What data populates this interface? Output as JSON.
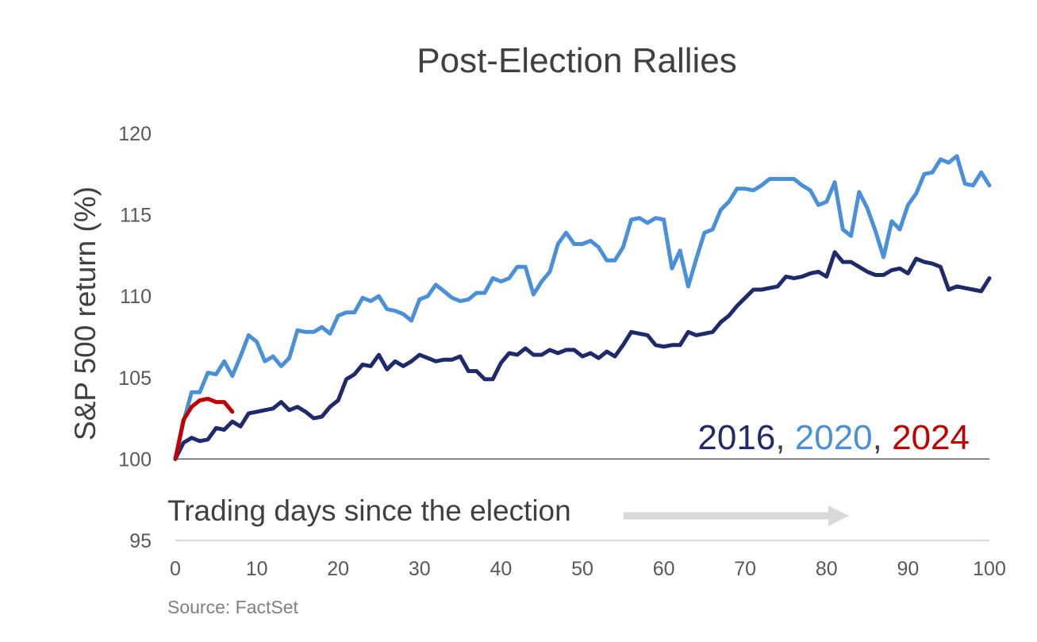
{
  "chart_data": {
    "type": "line",
    "title": "Post-Election Rallies",
    "ylabel": "S&P 500 return (%)",
    "xlabel": "",
    "xlim": [
      0,
      100
    ],
    "ylim": [
      95,
      120
    ],
    "x_ticks": [
      0,
      10,
      20,
      30,
      40,
      50,
      60,
      70,
      80,
      90,
      100
    ],
    "y_ticks": [
      95,
      100,
      105,
      110,
      115,
      120
    ],
    "baseline": 100,
    "annotation": "Trading days since the election",
    "legend": {
      "position": "right, above baseline",
      "items": [
        {
          "text": "2016",
          "color": "#1f2a6b"
        },
        {
          "text": ", ",
          "color": "#404040"
        },
        {
          "text": "2020",
          "color": "#4a90d9"
        },
        {
          "text": ", ",
          "color": "#404040"
        },
        {
          "text": "2024",
          "color": "#c00000"
        }
      ]
    },
    "series": [
      {
        "name": "2016",
        "color": "#1f2a6b",
        "points": [
          [
            0,
            100
          ],
          [
            1,
            101
          ],
          [
            2,
            101.3
          ],
          [
            3,
            101.1
          ],
          [
            4,
            101.2
          ],
          [
            5,
            101.9
          ],
          [
            6,
            101.8
          ],
          [
            7,
            102.3
          ],
          [
            8,
            102
          ],
          [
            9,
            102.8
          ],
          [
            10,
            102.9
          ],
          [
            11,
            103
          ],
          [
            12,
            103.1
          ],
          [
            13,
            103.5
          ],
          [
            14,
            103
          ],
          [
            15,
            103.2
          ],
          [
            16,
            102.9
          ],
          [
            17,
            102.5
          ],
          [
            18,
            102.6
          ],
          [
            19,
            103.2
          ],
          [
            20,
            103.6
          ],
          [
            21,
            104.9
          ],
          [
            22,
            105.2
          ],
          [
            23,
            105.8
          ],
          [
            24,
            105.7
          ],
          [
            25,
            106.4
          ],
          [
            26,
            105.5
          ],
          [
            27,
            106
          ],
          [
            28,
            105.7
          ],
          [
            29,
            106
          ],
          [
            30,
            106.4
          ],
          [
            31,
            106.2
          ],
          [
            32,
            106
          ],
          [
            33,
            106.1
          ],
          [
            34,
            106.1
          ],
          [
            35,
            106.3
          ],
          [
            36,
            105.4
          ],
          [
            37,
            105.4
          ],
          [
            38,
            104.9
          ],
          [
            39,
            104.9
          ],
          [
            40,
            105.9
          ],
          [
            41,
            106.5
          ],
          [
            42,
            106.4
          ],
          [
            43,
            106.8
          ],
          [
            44,
            106.4
          ],
          [
            45,
            106.4
          ],
          [
            46,
            106.7
          ],
          [
            47,
            106.5
          ],
          [
            48,
            106.7
          ],
          [
            49,
            106.7
          ],
          [
            50,
            106.3
          ],
          [
            51,
            106.5
          ],
          [
            52,
            106.2
          ],
          [
            53,
            106.6
          ],
          [
            54,
            106.3
          ],
          [
            55,
            107
          ],
          [
            56,
            107.8
          ],
          [
            57,
            107.7
          ],
          [
            58,
            107.6
          ],
          [
            59,
            107
          ],
          [
            60,
            106.9
          ],
          [
            61,
            107
          ],
          [
            62,
            107
          ],
          [
            63,
            107.8
          ],
          [
            64,
            107.6
          ],
          [
            65,
            107.7
          ],
          [
            66,
            107.8
          ],
          [
            67,
            108.4
          ],
          [
            68,
            108.8
          ],
          [
            69,
            109.4
          ],
          [
            70,
            109.9
          ],
          [
            71,
            110.4
          ],
          [
            72,
            110.4
          ],
          [
            73,
            110.5
          ],
          [
            74,
            110.6
          ],
          [
            75,
            111.2
          ],
          [
            76,
            111.1
          ],
          [
            77,
            111.2
          ],
          [
            78,
            111.4
          ],
          [
            79,
            111.5
          ],
          [
            80,
            111.2
          ],
          [
            81,
            112.7
          ],
          [
            82,
            112.1
          ],
          [
            83,
            112.1
          ],
          [
            84,
            111.8
          ],
          [
            85,
            111.5
          ],
          [
            86,
            111.3
          ],
          [
            87,
            111.3
          ],
          [
            88,
            111.6
          ],
          [
            89,
            111.7
          ],
          [
            90,
            111.4
          ],
          [
            91,
            112.3
          ],
          [
            92,
            112.1
          ],
          [
            93,
            112
          ],
          [
            94,
            111.8
          ],
          [
            95,
            110.4
          ],
          [
            96,
            110.6
          ],
          [
            97,
            110.5
          ],
          [
            98,
            110.4
          ],
          [
            99,
            110.3
          ],
          [
            100,
            111.1
          ]
        ]
      },
      {
        "name": "2020",
        "color": "#4a90d9",
        "points": [
          [
            0,
            100
          ],
          [
            1,
            102.3
          ],
          [
            2,
            104.1
          ],
          [
            3,
            104.1
          ],
          [
            4,
            105.3
          ],
          [
            5,
            105.2
          ],
          [
            6,
            106
          ],
          [
            7,
            105.1
          ],
          [
            8,
            106.3
          ],
          [
            9,
            107.6
          ],
          [
            10,
            107.2
          ],
          [
            11,
            106
          ],
          [
            12,
            106.3
          ],
          [
            13,
            105.7
          ],
          [
            14,
            106.2
          ],
          [
            15,
            107.9
          ],
          [
            16,
            107.8
          ],
          [
            17,
            107.8
          ],
          [
            18,
            108.1
          ],
          [
            19,
            107.7
          ],
          [
            20,
            108.8
          ],
          [
            21,
            109
          ],
          [
            22,
            109
          ],
          [
            23,
            109.9
          ],
          [
            24,
            109.7
          ],
          [
            25,
            110
          ],
          [
            26,
            109.2
          ],
          [
            27,
            109.1
          ],
          [
            28,
            108.9
          ],
          [
            29,
            108.5
          ],
          [
            30,
            109.8
          ],
          [
            31,
            110
          ],
          [
            32,
            110.7
          ],
          [
            33,
            110.3
          ],
          [
            34,
            109.9
          ],
          [
            35,
            109.7
          ],
          [
            36,
            109.8
          ],
          [
            37,
            110.2
          ],
          [
            38,
            110.2
          ],
          [
            39,
            111.1
          ],
          [
            40,
            110.9
          ],
          [
            41,
            111.1
          ],
          [
            42,
            111.8
          ],
          [
            43,
            111.8
          ],
          [
            44,
            110.1
          ],
          [
            45,
            110.9
          ],
          [
            46,
            111.5
          ],
          [
            47,
            113.2
          ],
          [
            48,
            113.9
          ],
          [
            49,
            113.2
          ],
          [
            50,
            113.2
          ],
          [
            51,
            113.4
          ],
          [
            52,
            113
          ],
          [
            53,
            112.2
          ],
          [
            54,
            112.2
          ],
          [
            55,
            113
          ],
          [
            56,
            114.7
          ],
          [
            57,
            114.8
          ],
          [
            58,
            114.5
          ],
          [
            59,
            114.8
          ],
          [
            60,
            114.7
          ],
          [
            61,
            111.7
          ],
          [
            62,
            112.8
          ],
          [
            63,
            110.6
          ],
          [
            64,
            112.3
          ],
          [
            65,
            113.9
          ],
          [
            66,
            114.1
          ],
          [
            67,
            115.3
          ],
          [
            68,
            115.8
          ],
          [
            69,
            116.6
          ],
          [
            70,
            116.6
          ],
          [
            71,
            116.5
          ],
          [
            72,
            116.8
          ],
          [
            73,
            117.2
          ],
          [
            74,
            117.2
          ],
          [
            75,
            117.2
          ],
          [
            76,
            117.2
          ],
          [
            77,
            116.8
          ],
          [
            78,
            116.5
          ],
          [
            79,
            115.6
          ],
          [
            80,
            115.8
          ],
          [
            81,
            117
          ],
          [
            82,
            114.1
          ],
          [
            83,
            113.7
          ],
          [
            84,
            116.4
          ],
          [
            85,
            115.4
          ],
          [
            86,
            114
          ],
          [
            87,
            112.4
          ],
          [
            88,
            114.6
          ],
          [
            89,
            114.1
          ],
          [
            90,
            115.6
          ],
          [
            91,
            116.3
          ],
          [
            92,
            117.5
          ],
          [
            93,
            117.6
          ],
          [
            94,
            118.4
          ],
          [
            95,
            118.2
          ],
          [
            96,
            118.6
          ],
          [
            97,
            116.9
          ],
          [
            98,
            116.8
          ],
          [
            99,
            117.6
          ],
          [
            100,
            116.8
          ]
        ]
      },
      {
        "name": "2024",
        "color": "#c00000",
        "points": [
          [
            0,
            100
          ],
          [
            1,
            102.4
          ],
          [
            2,
            103.2
          ],
          [
            3,
            103.6
          ],
          [
            4,
            103.7
          ],
          [
            5,
            103.5
          ],
          [
            6,
            103.5
          ],
          [
            7,
            102.9
          ]
        ]
      }
    ]
  },
  "source": "Source: FactSet"
}
